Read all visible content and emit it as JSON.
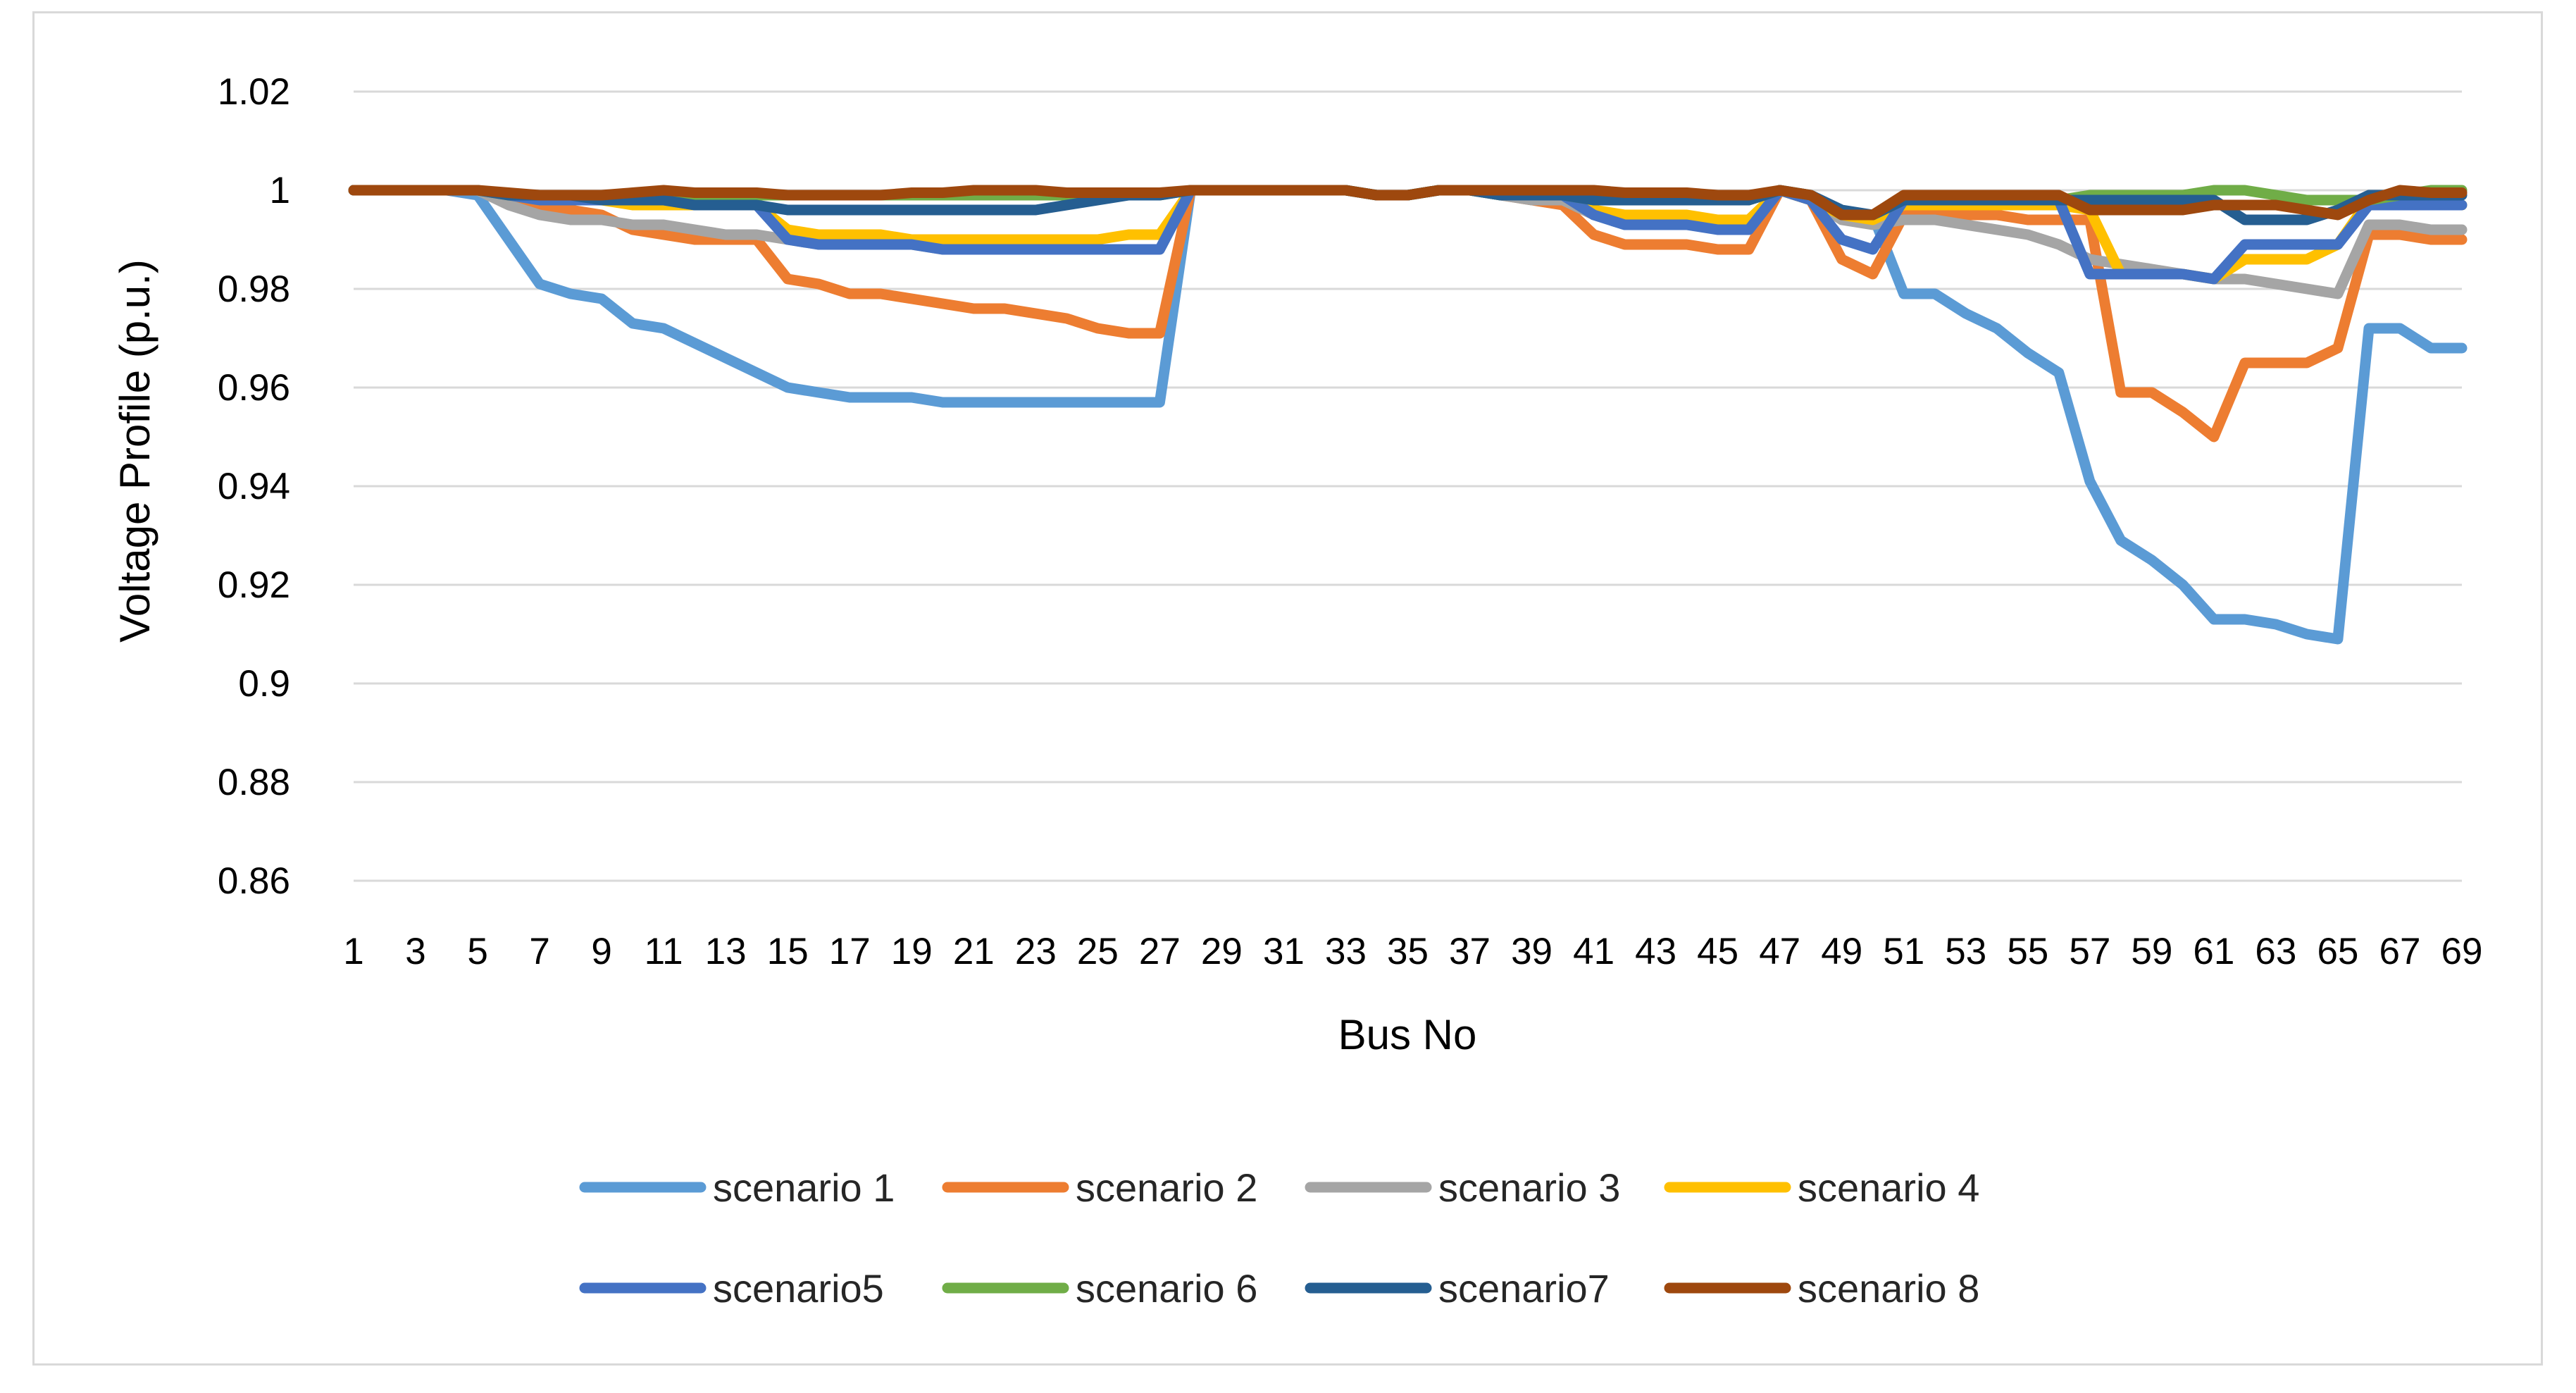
{
  "chart_data": {
    "type": "line",
    "title": "",
    "xlabel": "Bus No",
    "ylabel": "Voltage Profile (p.u.)",
    "ylim": [
      0.86,
      1.02
    ],
    "yticks": [
      "0.86",
      "0.88",
      "0.9",
      "0.92",
      "0.94",
      "0.96",
      "0.98",
      "1",
      "1.02"
    ],
    "xlim": [
      1,
      69
    ],
    "xticks": [
      "1",
      "3",
      "5",
      "7",
      "9",
      "11",
      "13",
      "15",
      "17",
      "19",
      "21",
      "23",
      "25",
      "27",
      "29",
      "31",
      "33",
      "35",
      "37",
      "39",
      "41",
      "43",
      "45",
      "47",
      "49",
      "51",
      "53",
      "55",
      "57",
      "59",
      "61",
      "63",
      "65",
      "67",
      "69"
    ],
    "grid": "horizontal",
    "legend_position": "bottom",
    "series": [
      {
        "name": "scenario 1",
        "color": "#5b9bd5",
        "x": [
          1,
          2,
          3,
          4,
          5,
          6,
          7,
          8,
          9,
          10,
          11,
          12,
          13,
          14,
          15,
          16,
          17,
          18,
          19,
          20,
          21,
          22,
          23,
          24,
          25,
          26,
          27,
          28,
          29,
          30,
          31,
          32,
          33,
          34,
          35,
          36,
          37,
          38,
          39,
          40,
          41,
          42,
          43,
          44,
          45,
          46,
          47,
          48,
          49,
          50,
          51,
          52,
          53,
          54,
          55,
          56,
          57,
          58,
          59,
          60,
          61,
          62,
          63,
          64,
          65,
          66,
          67,
          68,
          69
        ],
        "values": [
          1,
          1,
          1,
          1,
          0.999,
          0.99,
          0.981,
          0.979,
          0.978,
          0.973,
          0.972,
          0.969,
          0.966,
          0.963,
          0.96,
          0.959,
          0.958,
          0.958,
          0.958,
          0.957,
          0.957,
          0.957,
          0.957,
          0.957,
          0.957,
          0.957,
          0.957,
          1,
          1,
          1,
          1,
          1,
          1,
          0.999,
          0.999,
          1,
          1,
          0.999,
          0.999,
          0.999,
          0.995,
          0.993,
          0.993,
          0.993,
          0.993,
          0.993,
          1,
          0.998,
          0.995,
          0.995,
          0.979,
          0.979,
          0.975,
          0.972,
          0.967,
          0.963,
          0.941,
          0.929,
          0.925,
          0.92,
          0.913,
          0.913,
          0.912,
          0.91,
          0.909,
          0.972,
          0.972,
          0.968,
          0.968
        ]
      },
      {
        "name": "scenario 2",
        "color": "#ed7d31",
        "x": [
          1,
          2,
          3,
          4,
          5,
          6,
          7,
          8,
          9,
          10,
          11,
          12,
          13,
          14,
          15,
          16,
          17,
          18,
          19,
          20,
          21,
          22,
          23,
          24,
          25,
          26,
          27,
          28,
          29,
          30,
          31,
          32,
          33,
          34,
          35,
          36,
          37,
          38,
          39,
          40,
          41,
          42,
          43,
          44,
          45,
          46,
          47,
          48,
          49,
          50,
          51,
          52,
          53,
          54,
          55,
          56,
          57,
          58,
          59,
          60,
          61,
          62,
          63,
          64,
          65,
          66,
          67,
          68,
          69
        ],
        "values": [
          1,
          1,
          1,
          1,
          1,
          0.998,
          0.997,
          0.996,
          0.995,
          0.992,
          0.991,
          0.99,
          0.99,
          0.99,
          0.982,
          0.981,
          0.979,
          0.979,
          0.978,
          0.977,
          0.976,
          0.976,
          0.975,
          0.974,
          0.972,
          0.971,
          0.971,
          1,
          1,
          1,
          1,
          1,
          1,
          0.999,
          0.999,
          1,
          1,
          0.999,
          0.998,
          0.997,
          0.991,
          0.989,
          0.989,
          0.989,
          0.988,
          0.988,
          1,
          0.998,
          0.986,
          0.983,
          0.995,
          0.995,
          0.995,
          0.995,
          0.994,
          0.994,
          0.994,
          0.959,
          0.959,
          0.955,
          0.95,
          0.965,
          0.965,
          0.965,
          0.968,
          0.991,
          0.991,
          0.99,
          0.99
        ]
      },
      {
        "name": "scenario 3",
        "color": "#a5a5a5",
        "x": [
          1,
          2,
          3,
          4,
          5,
          6,
          7,
          8,
          9,
          10,
          11,
          12,
          13,
          14,
          15,
          16,
          17,
          18,
          19,
          20,
          21,
          22,
          23,
          24,
          25,
          26,
          27,
          28,
          29,
          30,
          31,
          32,
          33,
          34,
          35,
          36,
          37,
          38,
          39,
          40,
          41,
          42,
          43,
          44,
          45,
          46,
          47,
          48,
          49,
          50,
          51,
          52,
          53,
          54,
          55,
          56,
          57,
          58,
          59,
          60,
          61,
          62,
          63,
          64,
          65,
          66,
          67,
          68,
          69
        ],
        "values": [
          1,
          1,
          1,
          1,
          1,
          0.997,
          0.995,
          0.994,
          0.994,
          0.993,
          0.993,
          0.992,
          0.991,
          0.991,
          0.99,
          0.989,
          0.989,
          0.989,
          0.989,
          0.988,
          0.988,
          0.988,
          0.988,
          0.988,
          0.988,
          0.988,
          0.988,
          1,
          1,
          1,
          1,
          1,
          1,
          0.999,
          0.999,
          1,
          1,
          0.999,
          0.998,
          0.998,
          0.995,
          0.994,
          0.994,
          0.994,
          0.994,
          0.994,
          1,
          0.998,
          0.994,
          0.993,
          0.994,
          0.994,
          0.993,
          0.992,
          0.991,
          0.989,
          0.986,
          0.985,
          0.984,
          0.983,
          0.982,
          0.982,
          0.981,
          0.98,
          0.979,
          0.993,
          0.993,
          0.992,
          0.992
        ]
      },
      {
        "name": "scenario 4",
        "color": "#ffc000",
        "x": [
          1,
          2,
          3,
          4,
          5,
          6,
          7,
          8,
          9,
          10,
          11,
          12,
          13,
          14,
          15,
          16,
          17,
          18,
          19,
          20,
          21,
          22,
          23,
          24,
          25,
          26,
          27,
          28,
          29,
          30,
          31,
          32,
          33,
          34,
          35,
          36,
          37,
          38,
          39,
          40,
          41,
          42,
          43,
          44,
          45,
          46,
          47,
          48,
          49,
          50,
          51,
          52,
          53,
          54,
          55,
          56,
          57,
          58,
          59,
          60,
          61,
          62,
          63,
          64,
          65,
          66,
          67,
          68,
          69
        ],
        "values": [
          1,
          1,
          1,
          1,
          1,
          0.999,
          0.998,
          0.998,
          0.998,
          0.997,
          0.997,
          0.997,
          0.997,
          0.997,
          0.992,
          0.991,
          0.991,
          0.991,
          0.99,
          0.99,
          0.99,
          0.99,
          0.99,
          0.99,
          0.99,
          0.991,
          0.991,
          1,
          1,
          1,
          1,
          1,
          1,
          0.999,
          0.999,
          1,
          1,
          0.999,
          0.999,
          0.999,
          0.996,
          0.995,
          0.995,
          0.995,
          0.994,
          0.994,
          1,
          0.998,
          0.995,
          0.994,
          0.997,
          0.997,
          0.997,
          0.997,
          0.997,
          0.997,
          0.996,
          0.983,
          0.983,
          0.983,
          0.982,
          0.986,
          0.986,
          0.986,
          0.989,
          0.998,
          0.998,
          0.997,
          0.997
        ]
      },
      {
        "name": "scenario5",
        "color": "#4472c4",
        "x": [
          1,
          2,
          3,
          4,
          5,
          6,
          7,
          8,
          9,
          10,
          11,
          12,
          13,
          14,
          15,
          16,
          17,
          18,
          19,
          20,
          21,
          22,
          23,
          24,
          25,
          26,
          27,
          28,
          29,
          30,
          31,
          32,
          33,
          34,
          35,
          36,
          37,
          38,
          39,
          40,
          41,
          42,
          43,
          44,
          45,
          46,
          47,
          48,
          49,
          50,
          51,
          52,
          53,
          54,
          55,
          56,
          57,
          58,
          59,
          60,
          61,
          62,
          63,
          64,
          65,
          66,
          67,
          68,
          69
        ],
        "values": [
          1,
          1,
          1,
          1,
          1,
          0.999,
          0.998,
          0.998,
          0.998,
          0.998,
          0.998,
          0.997,
          0.997,
          0.997,
          0.99,
          0.989,
          0.989,
          0.989,
          0.989,
          0.988,
          0.988,
          0.988,
          0.988,
          0.988,
          0.988,
          0.988,
          0.988,
          1,
          1,
          1,
          1,
          1,
          1,
          0.999,
          0.999,
          1,
          1,
          0.999,
          0.999,
          0.999,
          0.995,
          0.993,
          0.993,
          0.993,
          0.992,
          0.992,
          1,
          0.998,
          0.99,
          0.988,
          0.998,
          0.998,
          0.998,
          0.998,
          0.998,
          0.998,
          0.983,
          0.983,
          0.983,
          0.983,
          0.982,
          0.989,
          0.989,
          0.989,
          0.989,
          0.997,
          0.997,
          0.997,
          0.997
        ]
      },
      {
        "name": "scenario 6",
        "color": "#70ad47",
        "x": [
          1,
          2,
          3,
          4,
          5,
          6,
          7,
          8,
          9,
          10,
          11,
          12,
          13,
          14,
          15,
          16,
          17,
          18,
          19,
          20,
          21,
          22,
          23,
          24,
          25,
          26,
          27,
          28,
          29,
          30,
          31,
          32,
          33,
          34,
          35,
          36,
          37,
          38,
          39,
          40,
          41,
          42,
          43,
          44,
          45,
          46,
          47,
          48,
          49,
          50,
          51,
          52,
          53,
          54,
          55,
          56,
          57,
          58,
          59,
          60,
          61,
          62,
          63,
          64,
          65,
          66,
          67,
          68,
          69
        ],
        "values": [
          1,
          1,
          1,
          1,
          1,
          0.999,
          0.999,
          0.999,
          0.999,
          0.999,
          0.999,
          0.999,
          0.999,
          0.999,
          0.999,
          0.999,
          0.999,
          0.999,
          0.999,
          0.999,
          0.999,
          0.999,
          0.999,
          0.999,
          0.999,
          0.999,
          0.999,
          1,
          1,
          1,
          1,
          1,
          1,
          0.999,
          0.999,
          1,
          1,
          0.999,
          0.999,
          0.999,
          0.998,
          0.998,
          0.998,
          0.998,
          0.998,
          0.998,
          1,
          0.999,
          0.995,
          0.995,
          0.998,
          0.998,
          0.998,
          0.998,
          0.998,
          0.998,
          0.999,
          0.999,
          0.999,
          0.999,
          1,
          1,
          0.999,
          0.998,
          0.998,
          0.998,
          0.999,
          1,
          1
        ]
      },
      {
        "name": "scenario7",
        "color": "#255e91",
        "x": [
          1,
          2,
          3,
          4,
          5,
          6,
          7,
          8,
          9,
          10,
          11,
          12,
          13,
          14,
          15,
          16,
          17,
          18,
          19,
          20,
          21,
          22,
          23,
          24,
          25,
          26,
          27,
          28,
          29,
          30,
          31,
          32,
          33,
          34,
          35,
          36,
          37,
          38,
          39,
          40,
          41,
          42,
          43,
          44,
          45,
          46,
          47,
          48,
          49,
          50,
          51,
          52,
          53,
          54,
          55,
          56,
          57,
          58,
          59,
          60,
          61,
          62,
          63,
          64,
          65,
          66,
          67,
          68,
          69
        ],
        "values": [
          1,
          1,
          1,
          1,
          1,
          0.999,
          0.999,
          0.999,
          0.998,
          0.998,
          0.998,
          0.997,
          0.997,
          0.997,
          0.996,
          0.996,
          0.996,
          0.996,
          0.996,
          0.996,
          0.996,
          0.996,
          0.996,
          0.997,
          0.998,
          0.999,
          0.999,
          1,
          1,
          1,
          1,
          1,
          1,
          0.999,
          0.999,
          1,
          1,
          0.999,
          0.999,
          0.999,
          0.998,
          0.998,
          0.998,
          0.998,
          0.998,
          0.998,
          1,
          0.999,
          0.996,
          0.995,
          0.998,
          0.998,
          0.998,
          0.998,
          0.998,
          0.998,
          0.998,
          0.998,
          0.998,
          0.998,
          0.998,
          0.994,
          0.994,
          0.994,
          0.996,
          0.999,
          0.999,
          0.999,
          0.999
        ]
      },
      {
        "name": "scenario 8",
        "color": "#9e480e",
        "x": [
          1,
          2,
          3,
          4,
          5,
          6,
          7,
          8,
          9,
          10,
          11,
          12,
          13,
          14,
          15,
          16,
          17,
          18,
          19,
          20,
          21,
          22,
          23,
          24,
          25,
          26,
          27,
          28,
          29,
          30,
          31,
          32,
          33,
          34,
          35,
          36,
          37,
          38,
          39,
          40,
          41,
          42,
          43,
          44,
          45,
          46,
          47,
          48,
          49,
          50,
          51,
          52,
          53,
          54,
          55,
          56,
          57,
          58,
          59,
          60,
          61,
          62,
          63,
          64,
          65,
          66,
          67,
          68,
          69
        ],
        "values": [
          1,
          1,
          1,
          1,
          1,
          0.9995,
          0.999,
          0.999,
          0.999,
          0.9995,
          1,
          0.9995,
          0.9995,
          0.9995,
          0.999,
          0.999,
          0.999,
          0.999,
          0.9995,
          0.9995,
          1,
          1,
          1,
          0.9995,
          0.9995,
          0.9995,
          0.9995,
          1,
          1,
          1,
          1,
          1,
          1,
          0.999,
          0.999,
          1,
          1,
          1,
          1,
          1,
          1,
          0.9995,
          0.9995,
          0.9995,
          0.999,
          0.999,
          1,
          0.999,
          0.995,
          0.995,
          0.999,
          0.999,
          0.999,
          0.999,
          0.999,
          0.999,
          0.996,
          0.996,
          0.996,
          0.996,
          0.997,
          0.997,
          0.997,
          0.996,
          0.995,
          0.998,
          1,
          0.9995,
          0.9995
        ]
      }
    ]
  }
}
